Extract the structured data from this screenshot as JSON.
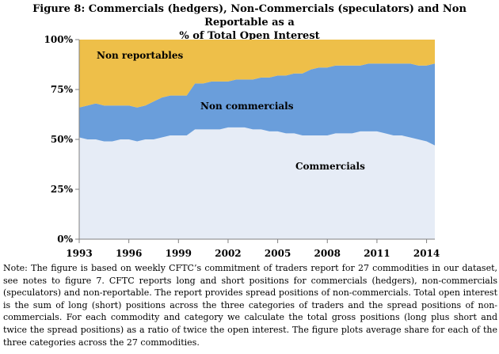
{
  "title_line1": "Figure 8: Commercials (hedgers), Non-Commercials (speculators) and Non Reportable as a",
  "title_line2": "% of Total Open Interest",
  "note": "Note: The figure is based on weekly CFTC’s commitment of traders report for 27 commodities in our dataset, see notes to figure 7.  CFTC reports long and short positions for commercials (hedgers), non-commercials (speculators) and non-reportable. The report provides spread positions of non-commercials. Total open interest is the sum of long (short) positions across the three categories of traders and the spread positions of non-commercials. For each commodity and category we calculate the total gross positions (long plus short and twice the spread positions) as a ratio of twice the open interest. The figure plots average share for each of the three categories across the 27 commodities.",
  "colors": {
    "commercials": "#e6ecf6",
    "non_commercials": "#6a9edb",
    "non_reportables": "#eebf49",
    "axis": "#808080"
  },
  "chart_data": {
    "type": "area",
    "stacked": true,
    "x": [
      1993.0,
      1993.5,
      1994.0,
      1994.5,
      1995.0,
      1995.5,
      1996.0,
      1996.5,
      1997.0,
      1997.5,
      1998.0,
      1998.5,
      1999.0,
      1999.5,
      2000.0,
      2000.5,
      2001.0,
      2001.5,
      2002.0,
      2002.5,
      2003.0,
      2003.5,
      2004.0,
      2004.5,
      2005.0,
      2005.5,
      2006.0,
      2006.5,
      2007.0,
      2007.5,
      2008.0,
      2008.5,
      2009.0,
      2009.5,
      2010.0,
      2010.5,
      2011.0,
      2011.5,
      2012.0,
      2012.5,
      2013.0,
      2013.5,
      2014.0,
      2014.5
    ],
    "series": [
      {
        "name": "Commercials",
        "values": [
          51,
          50,
          50,
          49,
          49,
          50,
          50,
          49,
          50,
          50,
          51,
          52,
          52,
          52,
          55,
          55,
          55,
          55,
          56,
          56,
          56,
          55,
          55,
          54,
          54,
          53,
          53,
          52,
          52,
          52,
          52,
          53,
          53,
          53,
          54,
          54,
          54,
          53,
          52,
          52,
          51,
          50,
          49,
          47
        ]
      },
      {
        "name": "Non commercials",
        "values": [
          15,
          17,
          18,
          18,
          18,
          17,
          17,
          17,
          17,
          19,
          20,
          20,
          20,
          20,
          23,
          23,
          24,
          24,
          23,
          24,
          24,
          25,
          26,
          27,
          28,
          29,
          30,
          31,
          33,
          34,
          34,
          34,
          34,
          34,
          33,
          34,
          34,
          35,
          36,
          36,
          37,
          37,
          38,
          41
        ]
      },
      {
        "name": "Non reportables",
        "values": [
          34,
          33,
          32,
          33,
          33,
          33,
          33,
          34,
          33,
          31,
          29,
          28,
          28,
          28,
          22,
          22,
          21,
          21,
          21,
          20,
          20,
          20,
          19,
          19,
          18,
          18,
          17,
          17,
          15,
          14,
          14,
          13,
          13,
          13,
          13,
          12,
          12,
          12,
          12,
          12,
          12,
          13,
          13,
          12
        ]
      }
    ],
    "area_labels": [
      "Non reportables",
      "Non commercials",
      "Commercials"
    ],
    "x_ticks": [
      1993,
      1996,
      1999,
      2002,
      2005,
      2008,
      2011,
      2014
    ],
    "y_ticks": [
      0,
      25,
      50,
      75,
      100
    ],
    "y_tick_labels": [
      "0%",
      "25%",
      "50%",
      "75%",
      "100%"
    ],
    "xlim": [
      1993,
      2014.5
    ],
    "ylim": [
      0,
      100
    ],
    "grid": false,
    "legend": "none"
  }
}
